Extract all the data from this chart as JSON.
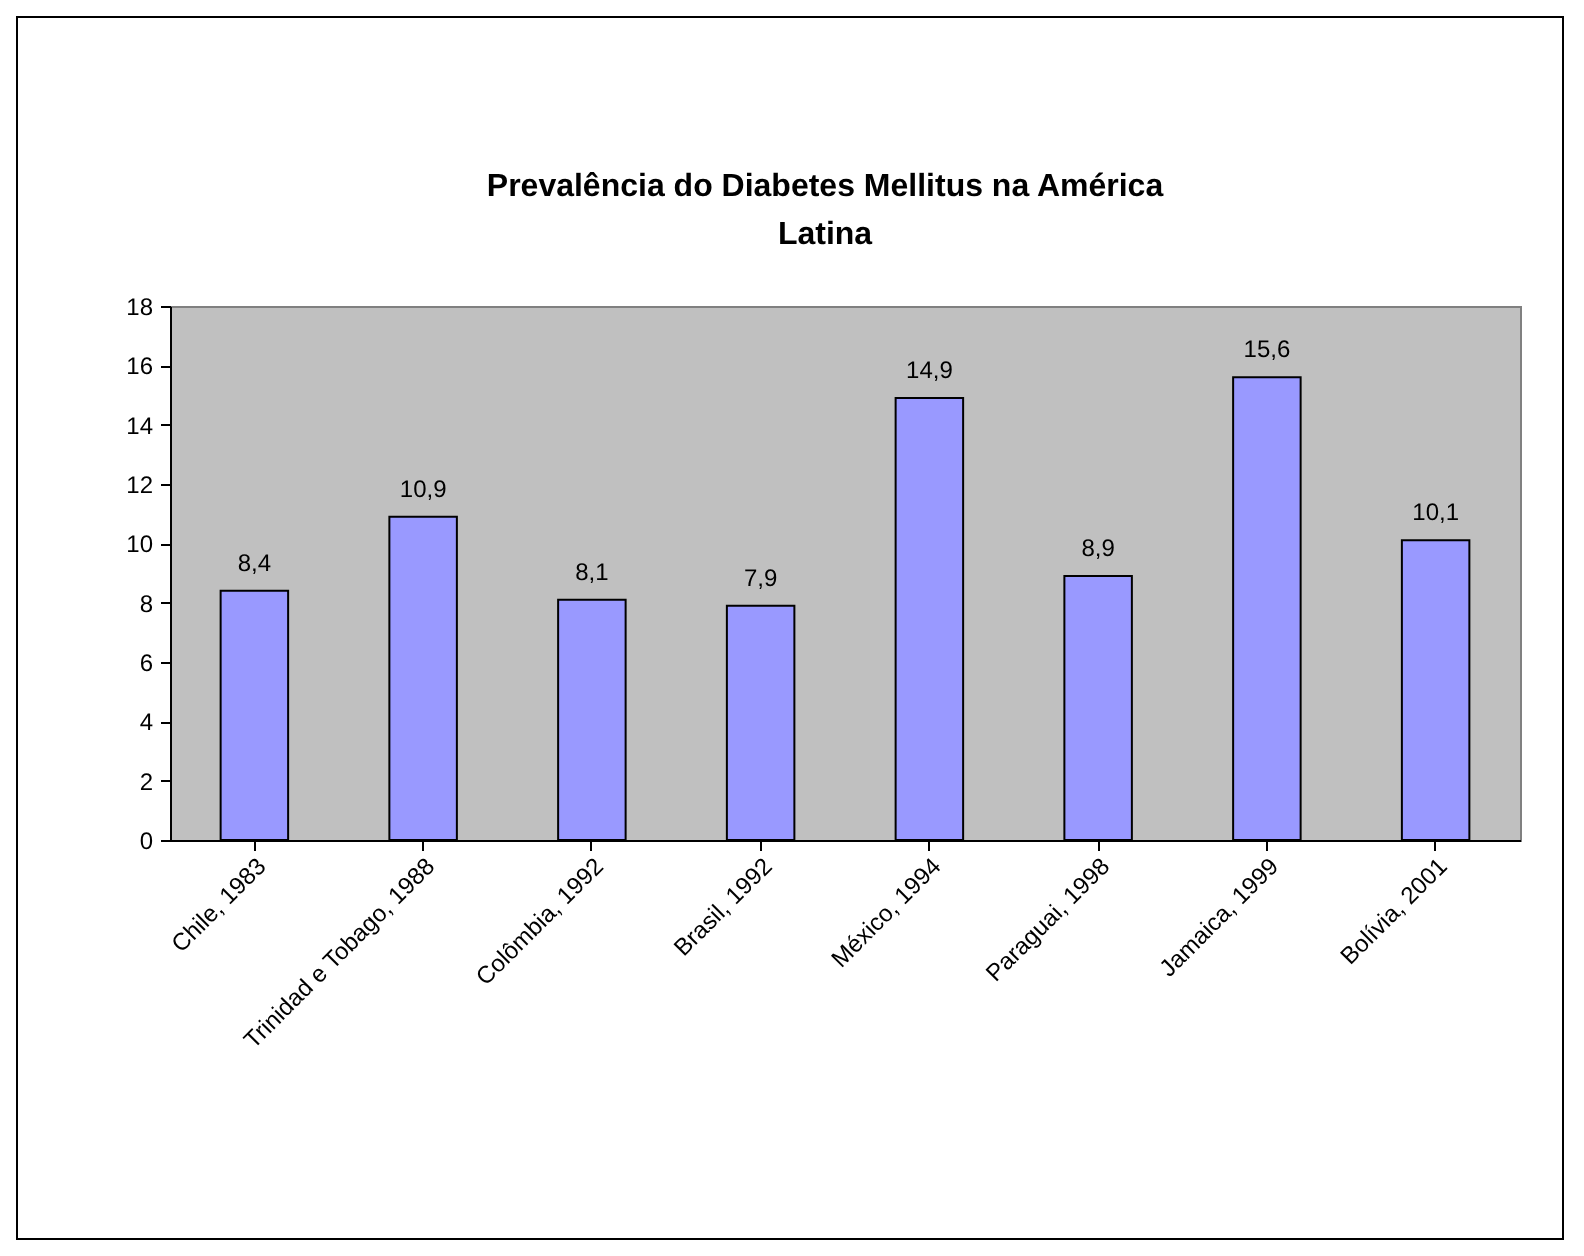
{
  "chart_data": {
    "type": "bar",
    "title": "Prevalência do Diabetes Mellitus na América Latina",
    "categories": [
      "Chile, 1983",
      "Trinidad e Tobago, 1988",
      "Colômbia, 1992",
      "Brasil, 1992",
      "México, 1994",
      "Paraguai, 1998",
      "Jamaica, 1999",
      "Bolívia, 2001"
    ],
    "values": [
      8.4,
      10.9,
      8.1,
      7.9,
      14.9,
      8.9,
      15.6,
      10.1
    ],
    "value_labels": [
      "8,4",
      "10,9",
      "8,1",
      "7,9",
      "14,9",
      "8,9",
      "15,6",
      "10,1"
    ],
    "color": "#9999ff",
    "ylim": [
      0,
      18
    ],
    "yticks": [
      0,
      2,
      4,
      6,
      8,
      10,
      12,
      14,
      16,
      18
    ],
    "grid": false
  }
}
